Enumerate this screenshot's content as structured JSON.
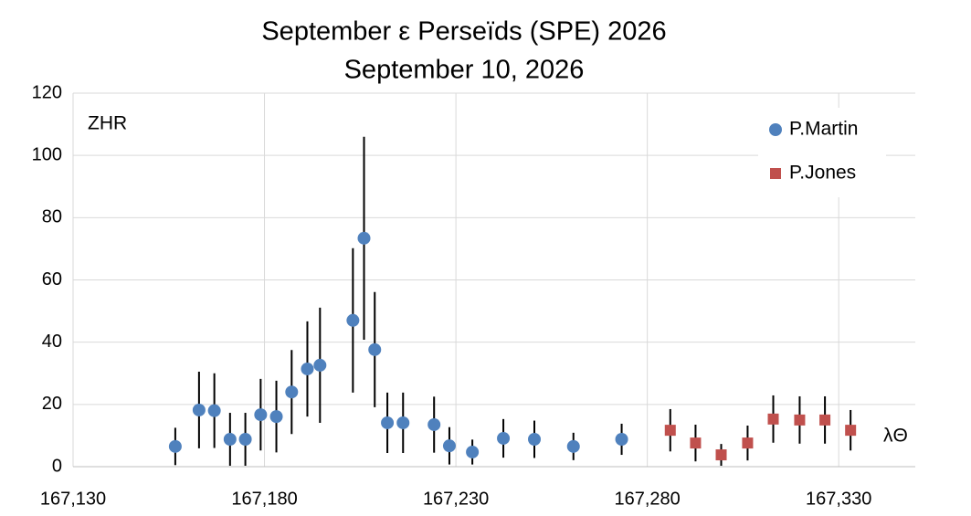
{
  "chart_data": {
    "type": "scatter",
    "title": "September ε Perseïds (SPE) 2026",
    "subtitle": "September 10, 2026",
    "y_label": "ZHR",
    "x_label": "λΘ",
    "xlim": [
      167.13,
      167.35
    ],
    "xticks": [
      {
        "value": 167.13,
        "label": "167,130"
      },
      {
        "value": 167.18,
        "label": "167,180"
      },
      {
        "value": 167.23,
        "label": "167,230"
      },
      {
        "value": 167.28,
        "label": "167,280"
      },
      {
        "value": 167.33,
        "label": "167,330"
      }
    ],
    "ylim": [
      0,
      120
    ],
    "yticks": [
      0,
      20,
      40,
      60,
      80,
      100,
      120
    ],
    "grid": true,
    "legend": "upper right",
    "series": [
      {
        "name": "P.Martin",
        "color": "#4f81bd",
        "marker": "circle",
        "x": [
          167.1567,
          167.1629,
          167.1669,
          167.171,
          167.175,
          167.179,
          167.1831,
          167.1871,
          167.1912,
          167.1945,
          167.2031,
          167.206,
          167.2088,
          167.2121,
          167.2162,
          167.2243,
          167.2283,
          167.2343,
          167.2424,
          167.2505,
          167.2607,
          167.2733
        ],
        "values": [
          6.5,
          18.2,
          18,
          8.8,
          8.8,
          16.7,
          16.1,
          24,
          31.4,
          32.6,
          47,
          73.4,
          37.6,
          14.1,
          14.1,
          13.5,
          6.7,
          4.7,
          9.1,
          8.8,
          6.5,
          8.8
        ],
        "errors": [
          6,
          12.3,
          12,
          8.5,
          8.5,
          11.5,
          11.5,
          13.5,
          15.3,
          18.5,
          23.2,
          32.6,
          18.5,
          9.7,
          9.7,
          9,
          6,
          4,
          6.2,
          6,
          4.4,
          5
        ]
      },
      {
        "name": "P.Jones",
        "color": "#c0504d",
        "marker": "square",
        "x": [
          167.286,
          167.2926,
          167.2993,
          167.3062,
          167.3129,
          167.3198,
          167.3264,
          167.3331
        ],
        "values": [
          11.7,
          7.6,
          3.8,
          7.6,
          15.3,
          15,
          15,
          11.7
        ],
        "errors": [
          6.8,
          5.9,
          3.5,
          5.6,
          7.6,
          7.6,
          7.6,
          6.5
        ]
      }
    ]
  }
}
